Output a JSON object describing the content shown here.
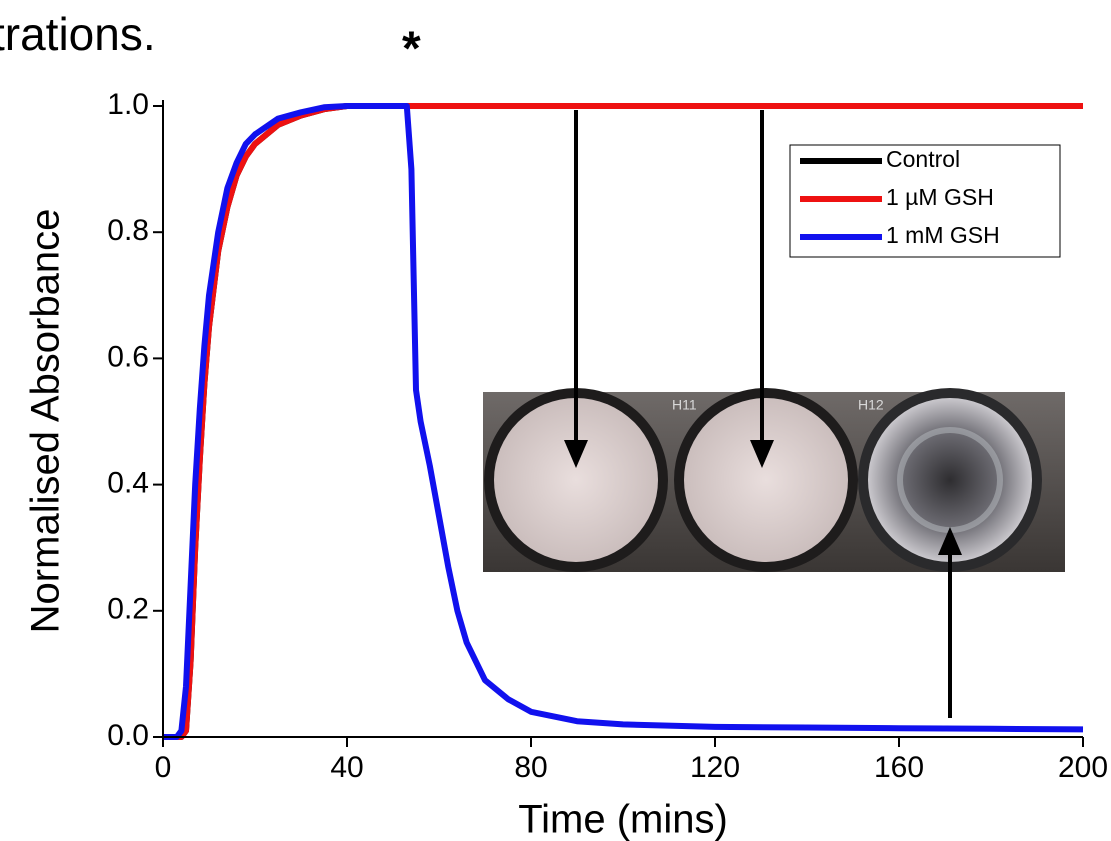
{
  "chart_data": {
    "type": "line",
    "header_text": "trations.",
    "annotations": [
      {
        "text": "*",
        "x": 54
      }
    ],
    "xlabel": "Time (mins)",
    "ylabel": "Normalised Absorbance",
    "xlim": [
      0,
      200
    ],
    "xticks": [
      0,
      40,
      80,
      120,
      160,
      200
    ],
    "ylim": [
      0,
      1
    ],
    "yticks": [
      {
        "value": 0,
        "label": "0.0"
      },
      0.2,
      0.4,
      0.6,
      0.8,
      {
        "value": 1,
        "label": "1.0"
      }
    ],
    "legend": "upper right",
    "inset_labels": [
      "H11",
      "H12"
    ],
    "x": [
      0,
      3,
      4,
      5,
      6,
      7,
      8,
      9,
      10,
      12,
      14,
      16,
      18,
      20,
      25,
      30,
      35,
      40,
      45,
      50,
      53,
      54,
      55,
      56,
      58,
      60,
      62,
      64,
      66,
      68,
      70,
      75,
      80,
      90,
      100,
      120,
      140,
      160,
      180,
      200
    ],
    "series": [
      {
        "name": "Control",
        "color": "#000000",
        "values": [
          0,
          0,
          0,
          0.01,
          0.12,
          0.3,
          0.44,
          0.56,
          0.65,
          0.77,
          0.84,
          0.89,
          0.92,
          0.94,
          0.97,
          0.985,
          0.995,
          1,
          1,
          1,
          1,
          1,
          1,
          1,
          1,
          1,
          1,
          1,
          1,
          1,
          1,
          1,
          1,
          1,
          1,
          1,
          1,
          1,
          1,
          1
        ]
      },
      {
        "name": "1 µM GSH",
        "color": "#ee1111",
        "values": [
          0,
          0,
          0,
          0.01,
          0.12,
          0.3,
          0.44,
          0.56,
          0.65,
          0.77,
          0.84,
          0.89,
          0.92,
          0.94,
          0.97,
          0.985,
          0.995,
          1,
          1,
          1,
          1,
          1,
          1,
          1,
          1,
          1,
          1,
          1,
          1,
          1,
          1,
          1,
          1,
          1,
          1,
          1,
          1,
          1,
          1,
          1
        ]
      },
      {
        "name": "1 mM GSH",
        "color": "#1111ee",
        "values": [
          0,
          0,
          0.01,
          0.08,
          0.24,
          0.4,
          0.52,
          0.62,
          0.7,
          0.8,
          0.87,
          0.91,
          0.94,
          0.955,
          0.98,
          0.99,
          0.998,
          1,
          1,
          1,
          1,
          0.9,
          0.55,
          0.5,
          0.43,
          0.35,
          0.27,
          0.2,
          0.15,
          0.12,
          0.09,
          0.06,
          0.04,
          0.025,
          0.02,
          0.016,
          0.015,
          0.014,
          0.013,
          0.012
        ]
      }
    ]
  }
}
